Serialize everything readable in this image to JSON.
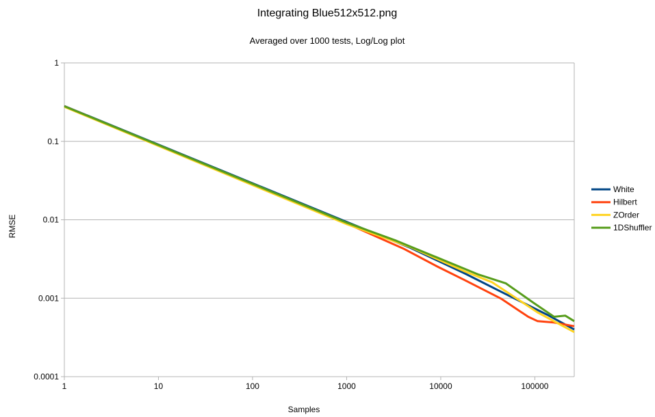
{
  "chart_data": {
    "type": "line",
    "title": "Integrating Blue512x512.png",
    "subtitle": "Averaged over 1000 tests, Log/Log plot",
    "xlabel": "Samples",
    "ylabel": "RMSE",
    "x_scale": "log",
    "y_scale": "log",
    "xlim": [
      1,
      262144
    ],
    "ylim": [
      0.0001,
      1
    ],
    "x_ticks": [
      "1",
      "10",
      "100",
      "1000",
      "10000",
      "100000"
    ],
    "y_ticks": [
      "1",
      "0.1",
      "0.01",
      "0.001",
      "0.0001"
    ],
    "grid": "horizontal",
    "legend": "right",
    "series": [
      {
        "name": "White",
        "color": "#004586",
        "x": [
          1,
          1000,
          4730,
          18000,
          49000,
          134000,
          262144
        ],
        "y": [
          0.282,
          0.0094,
          0.0044,
          0.00207,
          0.00113,
          0.00062,
          0.0004
        ]
      },
      {
        "name": "Hilbert",
        "color": "#ff420e",
        "x": [
          1,
          1000,
          4000,
          9230,
          18000,
          43700,
          85000,
          107000,
          160000,
          262144
        ],
        "y": [
          0.28,
          0.009,
          0.0043,
          0.00253,
          0.0017,
          0.00099,
          0.00058,
          0.00051,
          0.00049,
          0.00044
        ]
      },
      {
        "name": "ZOrder",
        "color": "#ffd320",
        "x": [
          1,
          1000,
          4730,
          18000,
          35000,
          107000,
          262144
        ],
        "y": [
          0.275,
          0.0088,
          0.0045,
          0.0022,
          0.0016,
          0.00066,
          0.00037
        ]
      },
      {
        "name": "1DShuffler",
        "color": "#579d1c",
        "x": [
          1,
          1000,
          3380,
          25300,
          49000,
          96000,
          160000,
          210000,
          262144
        ],
        "y": [
          0.28,
          0.0092,
          0.0054,
          0.002,
          0.00155,
          0.00088,
          0.00058,
          0.0006,
          0.00051
        ]
      }
    ]
  }
}
